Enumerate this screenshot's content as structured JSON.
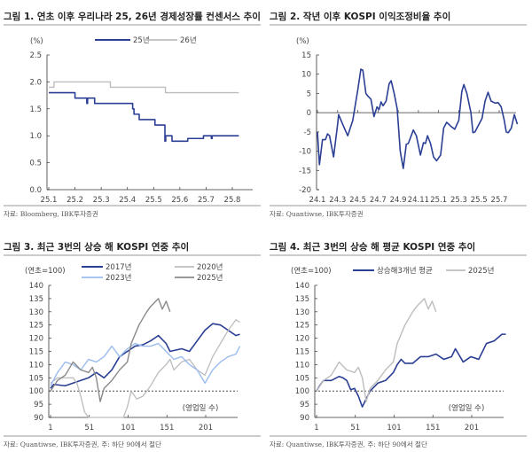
{
  "chart_data": [
    {
      "type": "line",
      "title": "그림 1. 연초 이후 우리나라 25, 26년 경제성장률 컨센서스 추이",
      "unit": "(%)",
      "source": "자료: Bloomberg, IBK투자증권",
      "x_ticks": [
        "25.1",
        "25.2",
        "25.3",
        "25.4",
        "25.5",
        "25.6",
        "25.7",
        "25.8"
      ],
      "x_tick_values": [
        1,
        2,
        3,
        4,
        5,
        6,
        7,
        8
      ],
      "xlim": [
        0.93,
        8.8
      ],
      "y_ticks": [
        "0.0",
        "0.5",
        "1.0",
        "1.5",
        "2.0",
        "2.5"
      ],
      "y_tick_values": [
        0,
        0.5,
        1,
        1.5,
        2,
        2.5
      ],
      "ylim": [
        0,
        2.5
      ],
      "legend": "top",
      "step": true,
      "series": [
        {
          "name": "25년",
          "color": "#2b3f94",
          "width": 1.6,
          "x": [
            1.0,
            2.0,
            2.42,
            2.45,
            2.48,
            2.75,
            4.2,
            4.25,
            4.3,
            4.45,
            5.05,
            5.4,
            5.43,
            5.46,
            5.7,
            6.3,
            6.9,
            7.2,
            7.23,
            7.26,
            8.25
          ],
          "y": [
            1.8,
            1.7,
            1.7,
            1.6,
            1.7,
            1.6,
            1.5,
            1.4,
            1.4,
            1.3,
            1.2,
            1.2,
            0.9,
            1.0,
            0.9,
            0.95,
            1.0,
            0.95,
            1.0,
            1.0,
            1.0
          ]
        },
        {
          "name": "26년",
          "color": "#bdbdbd",
          "width": 1.4,
          "x": [
            1.0,
            1.2,
            3.35,
            5.45,
            8.25
          ],
          "y": [
            1.9,
            2.0,
            1.9,
            1.8,
            1.8
          ]
        }
      ]
    },
    {
      "type": "line",
      "title": "그림 2. 작년 이후 KOSPI 이익조정비율 추이",
      "unit": "(%)",
      "source": "자료: Quantiwse, IBK투자증권",
      "x_ticks": [
        "24.1",
        "24.3",
        "24.5",
        "24.7",
        "24.9",
        "24.11",
        "25.1",
        "25.3",
        "25.5",
        "25.7"
      ],
      "x_tick_values": [
        0,
        2,
        4,
        6,
        8,
        10,
        12,
        14,
        16,
        18
      ],
      "xlim": [
        -0.1,
        20.3
      ],
      "y_ticks": [
        "-20",
        "-15",
        "-10",
        "-5",
        "0",
        "5",
        "10",
        "15"
      ],
      "y_tick_values": [
        -20,
        -15,
        -10,
        -5,
        0,
        5,
        10,
        15
      ],
      "ylim": [
        -20,
        15
      ],
      "zero_line": true,
      "series": [
        {
          "color": "#2b3f94",
          "width": 1.6,
          "x": [
            0,
            0.2,
            0.5,
            0.8,
            1.0,
            1.2,
            1.6,
            2.0,
            2.1,
            2.5,
            3.0,
            3.5,
            4.0,
            4.3,
            4.5,
            4.8,
            5.0,
            5.3,
            5.6,
            5.9,
            6.1,
            6.3,
            6.5,
            6.8,
            7.1,
            7.3,
            7.6,
            7.9,
            8.2,
            8.5,
            8.8,
            9.0,
            9.5,
            9.8,
            10.2,
            10.5,
            10.7,
            10.9,
            11.2,
            11.5,
            11.8,
            12.2,
            12.5,
            12.8,
            13.2,
            13.6,
            14.0,
            14.3,
            14.5,
            14.8,
            15.2,
            15.4,
            15.6,
            16.0,
            16.3,
            16.6,
            16.9,
            17.2,
            17.6,
            17.9,
            18.2,
            18.5,
            18.7,
            18.9,
            19.2,
            19.5,
            19.8
          ],
          "y": [
            -5,
            -13.5,
            -7,
            -7,
            -5.5,
            -6,
            -11.5,
            -3,
            -0.5,
            -3,
            -6,
            -2,
            6,
            11.3,
            11,
            5,
            4.3,
            3.5,
            -1,
            1.5,
            0.8,
            2.8,
            1.8,
            3,
            7.5,
            8.3,
            5,
            1,
            -10,
            -14.5,
            -8.2,
            -8,
            -4.5,
            -6,
            -11,
            -7.8,
            -8,
            -6,
            -8,
            -11.5,
            -12.5,
            -11,
            -4,
            -2.5,
            -3.5,
            -4.3,
            -2,
            5.5,
            7.3,
            5,
            0,
            -5.2,
            -5,
            -3,
            -1.5,
            3,
            5.3,
            3,
            2.5,
            2.6,
            1.5,
            -2,
            -5,
            -5.2,
            -4,
            -0.5,
            -3
          ]
        }
      ]
    },
    {
      "type": "line",
      "title": "그림 3. 최근 3번의 상승 해 KOSPI 연중 추이",
      "unit": "(연초=100)",
      "xlabel": "(영업일 수)",
      "source": "자료: Quantiwse, IBK투자증권, 주: 하단 90에서 절단",
      "x_ticks": [
        "1",
        "51",
        "101",
        "151",
        "201"
      ],
      "x_tick_values": [
        1,
        51,
        101,
        151,
        201
      ],
      "xlim": [
        -1,
        243
      ],
      "y_ticks": [
        "90",
        "95",
        "100",
        "105",
        "110",
        "115",
        "120",
        "125",
        "130",
        "135",
        "140"
      ],
      "y_tick_values": [
        90,
        95,
        100,
        105,
        110,
        115,
        120,
        125,
        130,
        135,
        140
      ],
      "ylim": [
        90,
        140
      ],
      "ref_line": 100,
      "legend": "top",
      "series": [
        {
          "name": "2017년",
          "color": "#2b3f94",
          "width": 1.6,
          "x": [
            1,
            5,
            20,
            30,
            40,
            50,
            60,
            70,
            80,
            90,
            100,
            110,
            120,
            130,
            140,
            150,
            155,
            170,
            180,
            190,
            200,
            210,
            220,
            230,
            240,
            245
          ],
          "y": [
            101,
            102.5,
            102,
            103,
            104,
            105,
            107,
            105,
            108,
            113,
            115,
            117,
            117.5,
            119,
            121,
            118,
            115,
            116,
            115,
            119,
            123,
            125.5,
            125,
            123,
            121,
            121.5
          ]
        },
        {
          "name": "2020년",
          "color": "#bdbdbd",
          "width": 1.3,
          "x": [
            1,
            10,
            20,
            30,
            35,
            40,
            45,
            50,
            57,
            95,
            100,
            105,
            112,
            120,
            130,
            140,
            150,
            155,
            160,
            170,
            180,
            190,
            200,
            210,
            220,
            230,
            240,
            245
          ],
          "y": [
            103,
            105,
            105,
            105,
            103,
            98,
            92,
            90,
            90,
            90,
            94,
            100,
            97,
            98,
            102,
            107,
            110,
            112,
            108,
            111,
            112,
            108,
            106,
            113,
            118,
            123,
            127,
            126
          ]
        },
        {
          "name": "2023년",
          "color": "#9bbcef",
          "width": 1.4,
          "x": [
            1,
            10,
            20,
            30,
            40,
            50,
            60,
            70,
            80,
            90,
            100,
            110,
            120,
            130,
            140,
            150,
            160,
            170,
            180,
            190,
            200,
            210,
            220,
            230,
            240,
            245
          ],
          "y": [
            102,
            107,
            111,
            110,
            108,
            112,
            111,
            113,
            117,
            113,
            116,
            118,
            117,
            117,
            118,
            115,
            112,
            113,
            110,
            108,
            103,
            108,
            111,
            113,
            114,
            117
          ]
        },
        {
          "name": "2025년",
          "color": "#8a8a8a",
          "width": 1.4,
          "x": [
            1,
            10,
            20,
            30,
            40,
            50,
            55,
            60,
            65,
            70,
            80,
            90,
            100,
            105,
            115,
            125,
            130,
            140,
            145,
            150,
            155
          ],
          "y": [
            100,
            104,
            106,
            111,
            108,
            107,
            109,
            105,
            96,
            101,
            104,
            108,
            111,
            118,
            125,
            130,
            132,
            135,
            131,
            134,
            130
          ]
        }
      ]
    },
    {
      "type": "line",
      "title": "그림 4. 최근 3번의 상승 해 평균 KOSPI 연중 추이",
      "unit": "(연초=100)",
      "xlabel": "(영업일 수)",
      "source": "자료: Quantiwse, IBK투자증권, 주: 하단 90에서 절단",
      "x_ticks": [
        "1",
        "51",
        "101",
        "151",
        "201"
      ],
      "x_tick_values": [
        1,
        51,
        101,
        151,
        201
      ],
      "xlim": [
        -1,
        243
      ],
      "y_ticks": [
        "90",
        "95",
        "100",
        "105",
        "110",
        "115",
        "120",
        "125",
        "130",
        "135",
        "140"
      ],
      "y_tick_values": [
        90,
        95,
        100,
        105,
        110,
        115,
        120,
        125,
        130,
        135,
        140
      ],
      "ylim": [
        90,
        140
      ],
      "ref_line": 100,
      "legend": "top",
      "series": [
        {
          "name": "상승해3개년 평균",
          "color": "#2b3f94",
          "width": 1.6,
          "x": [
            1,
            5,
            10,
            20,
            30,
            35,
            40,
            45,
            50,
            55,
            60,
            65,
            70,
            80,
            90,
            100,
            105,
            110,
            115,
            125,
            135,
            145,
            155,
            165,
            175,
            180,
            190,
            200,
            210,
            215,
            220,
            230,
            240,
            245
          ],
          "y": [
            100,
            102,
            104,
            104,
            105.5,
            105,
            104,
            100.5,
            101,
            98,
            94,
            97,
            100,
            103,
            104,
            107,
            110,
            112,
            110.5,
            110.5,
            113,
            113,
            114,
            112,
            113,
            116,
            111,
            113,
            112,
            115,
            118,
            119,
            121.5,
            121.5
          ]
        },
        {
          "name": "2025년",
          "color": "#bdbdbd",
          "width": 1.4,
          "x": [
            1,
            10,
            20,
            30,
            40,
            50,
            55,
            60,
            65,
            70,
            80,
            90,
            100,
            105,
            115,
            125,
            130,
            140,
            145,
            150,
            155
          ],
          "y": [
            100,
            104,
            106,
            111,
            108,
            107,
            109,
            105,
            96,
            101,
            104,
            108,
            111,
            118,
            125,
            130,
            132,
            135,
            131,
            134,
            130
          ]
        }
      ]
    }
  ]
}
